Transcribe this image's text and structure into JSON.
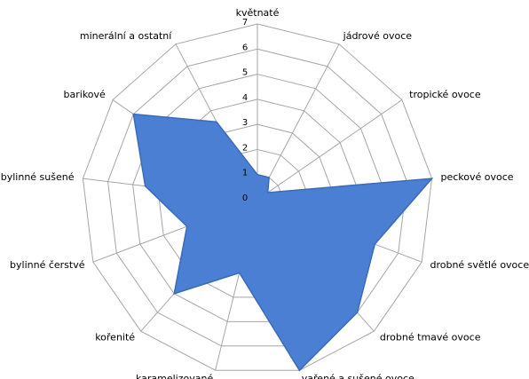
{
  "chart_data": {
    "type": "radar",
    "categories": [
      "květnaté",
      "jádrové ovoce",
      "tropické ovoce",
      "peckové ovoce",
      "drobné světlé ovoce",
      "drobné tmavé ovoce",
      "vařené a sušené ovoce",
      "karamelizované",
      "kořenité",
      "bylinné čerstvé",
      "bylinné sušené",
      "barikové",
      "minerální a ostatní"
    ],
    "values": [
      1,
      1,
      0.5,
      7,
      5,
      6,
      7,
      3,
      5,
      3,
      4.5,
      6,
      3.5
    ],
    "color": "#4a7fd4",
    "rlim": [
      0,
      7
    ],
    "rticks": [
      0,
      1,
      2,
      3,
      4,
      5,
      6,
      7
    ],
    "grid": true
  }
}
